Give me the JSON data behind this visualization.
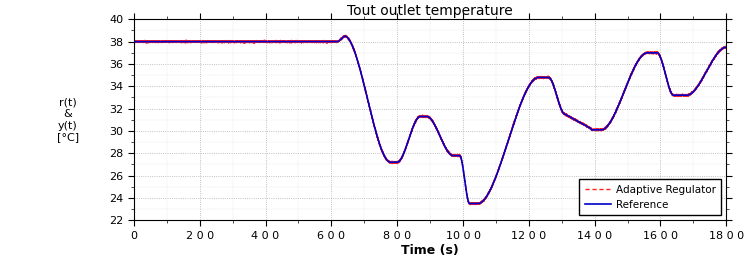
{
  "title": "Tout outlet temperature",
  "xlabel": "Time (s)",
  "ylabel": "r(t)\n&\ny(t)\n[°C]",
  "xlim": [
    0,
    1800
  ],
  "ylim": [
    22,
    40
  ],
  "yticks": [
    22,
    24,
    26,
    28,
    30,
    32,
    34,
    36,
    38,
    40
  ],
  "xticks": [
    0,
    200,
    400,
    600,
    800,
    1000,
    1200,
    1400,
    1600,
    1800
  ],
  "xtick_labels": [
    "0",
    "2 0 0",
    "4 0 0",
    "6 0 0",
    "8 0 0",
    "10 0 0",
    "12 0 0",
    "14 0 0",
    "16 0 0",
    "18 0 0"
  ],
  "ref_color": "#0000cc",
  "adapt_color": "#ff2222",
  "background_color": "#ffffff",
  "grid_color": "#999999",
  "legend_loc": "lower right",
  "ref_label": "Reference",
  "adapt_label": "Adaptive Regulator",
  "figsize": [
    7.48,
    2.66
  ],
  "dpi": 100
}
